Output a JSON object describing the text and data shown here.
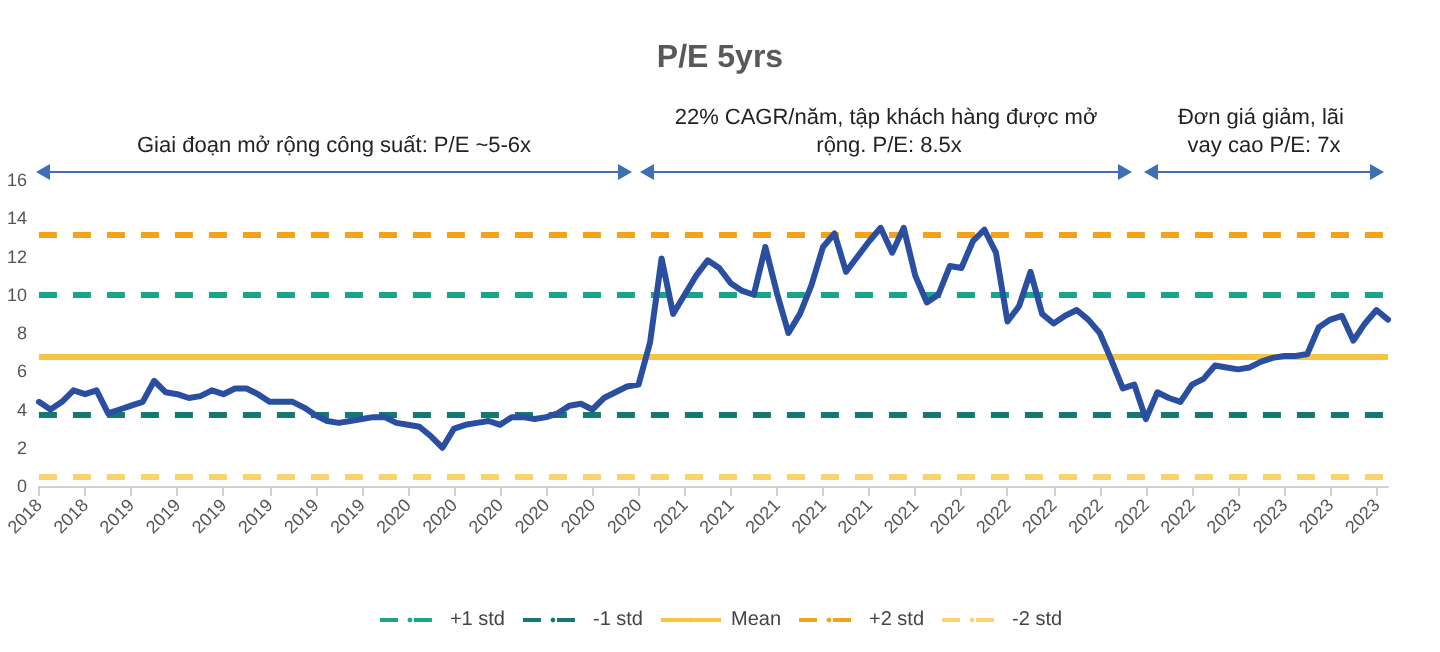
{
  "chart_data": {
    "type": "line",
    "title": "P/E 5yrs",
    "categories": [
      "2018",
      null,
      null,
      null,
      "2018",
      null,
      null,
      null,
      "2019",
      null,
      null,
      null,
      "2019",
      null,
      null,
      null,
      "2019",
      null,
      null,
      null,
      "2019",
      null,
      null,
      null,
      "2019",
      null,
      null,
      null,
      "2019",
      null,
      null,
      null,
      "2020",
      null,
      null,
      null,
      "2020",
      null,
      null,
      null,
      "2020",
      null,
      null,
      null,
      "2020",
      null,
      null,
      null,
      "2020",
      null,
      null,
      null,
      "2020",
      null,
      null,
      null,
      "2021",
      null,
      null,
      null,
      "2021",
      null,
      null,
      null,
      "2021",
      null,
      null,
      null,
      "2021",
      null,
      null,
      null,
      "2021",
      null,
      null,
      null,
      "2021",
      null,
      null,
      null,
      "2022",
      null,
      null,
      null,
      "2022",
      null,
      null,
      null,
      "2022",
      null,
      null,
      null,
      "2022",
      null,
      null,
      null,
      "2022",
      null,
      null,
      null,
      "2022",
      null,
      null,
      null,
      "2023",
      null,
      null,
      null,
      "2023",
      null,
      null,
      null,
      "2023",
      null,
      null,
      null,
      "2023",
      null
    ],
    "series": [
      {
        "color": "#2a4fa0",
        "values": [
          4.4,
          4.0,
          4.4,
          5.0,
          4.8,
          5.0,
          3.8,
          4.0,
          4.2,
          4.4,
          5.5,
          4.9,
          4.8,
          4.6,
          4.7,
          5.0,
          4.8,
          5.1,
          5.1,
          4.8,
          4.4,
          4.4,
          4.4,
          4.1,
          3.7,
          3.4,
          3.3,
          3.4,
          3.5,
          3.6,
          3.6,
          3.3,
          3.2,
          3.1,
          2.6,
          2.0,
          3.0,
          3.2,
          3.3,
          3.4,
          3.2,
          3.6,
          3.6,
          3.5,
          3.6,
          3.8,
          4.2,
          4.3,
          4.0,
          4.6,
          4.9,
          5.2,
          5.3,
          7.5,
          11.9,
          9.0,
          10.0,
          11.0,
          11.8,
          11.4,
          10.6,
          10.2,
          10.0,
          12.5,
          10.1,
          8.0,
          9.0,
          10.5,
          12.5,
          13.2,
          11.2,
          12.0,
          12.8,
          13.5,
          12.2,
          13.5,
          11.0,
          9.6,
          10.0,
          11.5,
          11.4,
          12.8,
          13.4,
          12.2,
          8.6,
          9.4,
          11.2,
          9.0,
          8.5,
          8.9,
          9.2,
          8.7,
          8.0,
          6.6,
          5.1,
          5.3,
          3.5,
          4.9,
          4.6,
          4.4,
          5.3,
          5.6,
          6.3,
          6.2,
          6.1,
          6.2,
          6.5,
          6.7,
          6.8,
          6.8,
          6.9,
          8.3,
          8.7,
          8.9,
          7.6,
          8.5,
          9.2,
          8.7
        ]
      }
    ],
    "ref_lines": [
      {
        "axis": "y",
        "value": 10.0,
        "label": "+1 std",
        "color": "#1aa58a",
        "line_style": "dashed"
      },
      {
        "axis": "y",
        "value": 3.7,
        "label": "-1 std",
        "color": "#127a72",
        "line_style": "dashed"
      },
      {
        "axis": "y",
        "value": 6.8,
        "label": "Mean",
        "color": "#f9c440",
        "line_style": "solid"
      },
      {
        "axis": "y",
        "value": 13.2,
        "label": "+2 std",
        "color": "#f4a21c",
        "line_style": "dashed"
      },
      {
        "axis": "y",
        "value": 0.5,
        "label": "-2 std",
        "color": "#fcd36b",
        "line_style": "dashed"
      }
    ],
    "annotations": [
      "Giai đoạn mở rộng công suất: P/E ~5-6x",
      "22% CAGR/năm, tập khách hàng được mở rộng. P/E: 8.5x",
      "Đơn giá giảm, lãi vay cao P/E: 7x"
    ],
    "ylim": [
      0,
      16
    ],
    "yticks": [
      0,
      2,
      4,
      6,
      8,
      10,
      12,
      14,
      16
    ],
    "grid": false,
    "legend": "bottom",
    "marker": "none",
    "line_style": "solid"
  }
}
